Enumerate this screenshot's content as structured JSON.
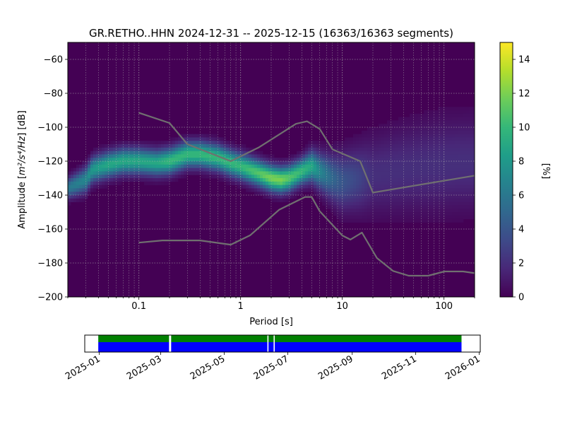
{
  "chart_data": [
    {
      "type": "heatmap",
      "title": "GR.RETHO..HHN   2024-12-31 -- 2025-12-15  (16363/16363 segments)",
      "xlabel": "Period [s]",
      "ylabel_prefix": "Amplitude [",
      "ylabel_math": "m²/s⁴/Hz",
      "ylabel_suffix": "] [dB]",
      "xscale": "log",
      "xlim": [
        0.02,
        200
      ],
      "ylim": [
        -200,
        -50
      ],
      "grid": true,
      "xticks": [
        {
          "value": 0.1,
          "label": "0.1"
        },
        {
          "value": 1,
          "label": "1"
        },
        {
          "value": 10,
          "label": "10"
        },
        {
          "value": 100,
          "label": "100"
        }
      ],
      "yticks": [
        {
          "value": -60,
          "label": "−60"
        },
        {
          "value": -80,
          "label": "−80"
        },
        {
          "value": -100,
          "label": "−100"
        },
        {
          "value": -120,
          "label": "−120"
        },
        {
          "value": -140,
          "label": "−140"
        },
        {
          "value": -160,
          "label": "−160"
        },
        {
          "value": -180,
          "label": "−180"
        },
        {
          "value": -200,
          "label": "−200"
        }
      ],
      "colorbar": {
        "label": "[%]",
        "range": [
          0,
          15
        ],
        "colormap": "viridis",
        "ticks": [
          {
            "value": 0,
            "label": "0"
          },
          {
            "value": 2,
            "label": "2"
          },
          {
            "value": 4,
            "label": "4"
          },
          {
            "value": 6,
            "label": "6"
          },
          {
            "value": 8,
            "label": "8"
          },
          {
            "value": 10,
            "label": "10"
          },
          {
            "value": 12,
            "label": "12"
          },
          {
            "value": 14,
            "label": "14"
          }
        ]
      },
      "density_ridge": {
        "periods": [
          0.02,
          0.03,
          0.035,
          0.05,
          0.07,
          0.1,
          0.15,
          0.2,
          0.3,
          0.4,
          0.6,
          0.8,
          1.0,
          1.5,
          2.0,
          2.5,
          3.0,
          4.0,
          5.0,
          6.0,
          8.0,
          10,
          15,
          20,
          30,
          50,
          100,
          200
        ],
        "mode_db": [
          -136,
          -131,
          -125,
          -122,
          -120,
          -120,
          -121,
          -120,
          -116,
          -116,
          -118,
          -121,
          -123,
          -127,
          -130,
          -131,
          -130,
          -126,
          -123,
          -126,
          -130,
          -132,
          -130,
          -128,
          -126,
          -124,
          -122,
          -121
        ],
        "spread_db": [
          4,
          5,
          5,
          5,
          5,
          5,
          5,
          5,
          5,
          5,
          5,
          5,
          5,
          5,
          5,
          5,
          5,
          5,
          6,
          7,
          9,
          11,
          13,
          15,
          16,
          17,
          18,
          18
        ],
        "peak_percent": [
          6,
          7,
          8,
          9,
          9,
          9,
          9,
          10,
          10,
          10,
          10,
          10,
          10,
          11,
          12,
          12,
          11,
          10,
          9,
          7,
          5,
          4,
          3,
          2,
          2,
          2,
          2,
          2
        ]
      },
      "series": [
        {
          "x": [
            0.1,
            0.2,
            0.3,
            0.8,
            1.5,
            3.5,
            4.5,
            6.0,
            8.0,
            15,
            20,
            200
          ],
          "y": [
            -91.5,
            -97.5,
            -110,
            -120,
            -112,
            -98,
            -96.5,
            -101,
            -113,
            -120,
            -138.5,
            -128.5
          ]
        },
        {
          "x": [
            0.1,
            0.17,
            0.4,
            0.8,
            1.24,
            2.4,
            4.3,
            5.0,
            6.0,
            10,
            12,
            15.6,
            21.9,
            31.6,
            45,
            70,
            101,
            154,
            200
          ],
          "y": [
            -168,
            -166.7,
            -166.7,
            -169.2,
            -163.7,
            -148.6,
            -141.1,
            -141.1,
            -149.5,
            -163.8,
            -166.2,
            -162.1,
            -177.1,
            -184.7,
            -187.5,
            -187.5,
            -185.0,
            -185.0,
            -186
          ]
        }
      ]
    },
    {
      "type": "table",
      "description_none": "",
      "xticks": [
        {
          "date": "2025-01",
          "label": "2025-01"
        },
        {
          "date": "2025-03",
          "label": "2025-03"
        },
        {
          "date": "2025-05",
          "label": "2025-05"
        },
        {
          "date": "2025-07",
          "label": "2025-07"
        },
        {
          "date": "2025-09",
          "label": "2025-09"
        },
        {
          "date": "2025-11",
          "label": "2025-11"
        },
        {
          "date": "2026-01",
          "label": "2026-01"
        }
      ],
      "xlim": [
        "2024-12-18",
        "2026-01-02"
      ],
      "coverage_span": [
        "2024-12-31",
        "2025-12-15"
      ],
      "gaps": [
        "2025-03-10",
        "2025-06-12",
        "2025-06-18"
      ],
      "colors": {
        "data": "#0000ff",
        "used": "#008000",
        "gap": "#ffffff"
      }
    }
  ]
}
